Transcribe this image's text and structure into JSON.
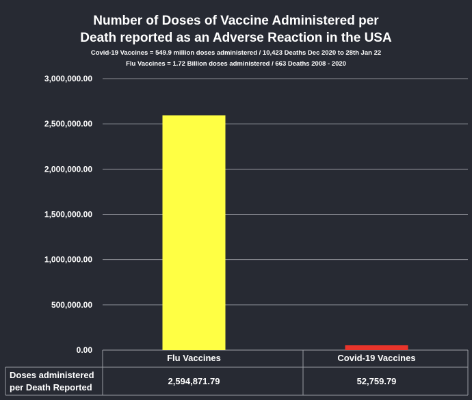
{
  "chart_data": {
    "type": "bar",
    "title_line1": "Number of Doses of Vaccine Administered per",
    "title_line2": "Death reported as an Adverse Reaction in the USA",
    "subtitle_line1": "Covid-19 Vaccines = 549.9 million doses administered / 10,423 Deaths Dec 2020 to 28th Jan 22",
    "subtitle_line2": "Flu Vaccines = 1.72 Billion doses administered / 663 Deaths 2008 - 2020",
    "categories": [
      "Flu Vaccines",
      "Covid-19 Vaccines"
    ],
    "values": [
      2594871.79,
      52759.79
    ],
    "value_labels": [
      "2,594,871.79",
      "52,759.79"
    ],
    "colors": [
      "#ffff44",
      "#e8342b"
    ],
    "ylim": [
      0,
      3000000
    ],
    "yticks": [
      0,
      500000,
      1000000,
      1500000,
      2000000,
      2500000,
      3000000
    ],
    "ytick_labels": [
      "0.00",
      "500,000.00",
      "1,000,000.00",
      "1,500,000.00",
      "2,000,000.00",
      "2,500,000.00",
      "3,000,000.00"
    ],
    "grid": true,
    "data_table": {
      "row_label_line1": "Doses administered",
      "row_label_line2": "per Death Reported"
    }
  }
}
